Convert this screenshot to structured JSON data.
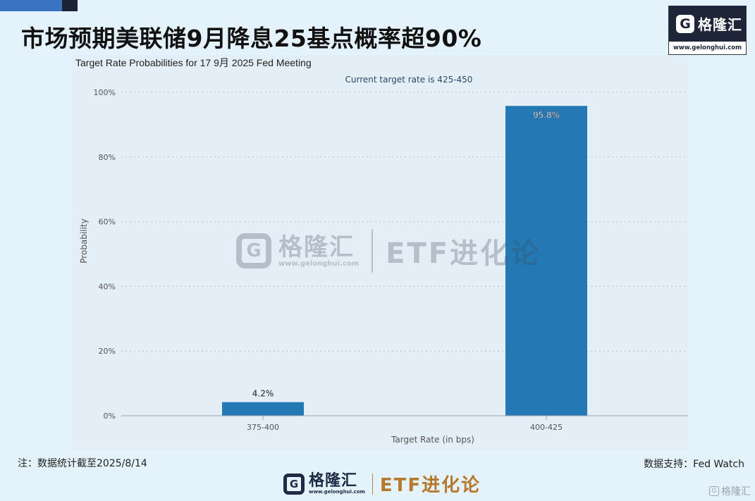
{
  "headline": "市场预期美联储9月降息25基点概率超90%",
  "brand": {
    "mark": "G",
    "name": "格隆汇",
    "url": "www.gelonghui.com"
  },
  "watermark": {
    "mark": "G",
    "name": "格隆汇",
    "url": "www.gelonghui.com",
    "etf": "ETF进化论"
  },
  "chart_data": {
    "type": "bar",
    "title": "Target Rate Probabilities for 17 9月 2025 Fed Meeting",
    "subtitle": "Current target rate is 425-450",
    "xlabel": "Target Rate (in bps)",
    "ylabel": "Probability",
    "categories": [
      "375-400",
      "400-425"
    ],
    "values": [
      4.2,
      95.8
    ],
    "value_labels": [
      "4.2%",
      "95.8%"
    ],
    "ylim": [
      0,
      100
    ],
    "yticks": [
      "0%",
      "20%",
      "40%",
      "60%",
      "80%",
      "100%"
    ],
    "grid": true,
    "bar_color": "#2479b5"
  },
  "footer": {
    "note": "注：数据统计截至2025/8/14",
    "source": "数据支持：Fed Watch",
    "mark": "G",
    "name": "格隆汇",
    "url": "www.gelonghui.com",
    "etf": "ETF进化论"
  },
  "corner": {
    "mark": "G",
    "name": "格隆汇"
  }
}
